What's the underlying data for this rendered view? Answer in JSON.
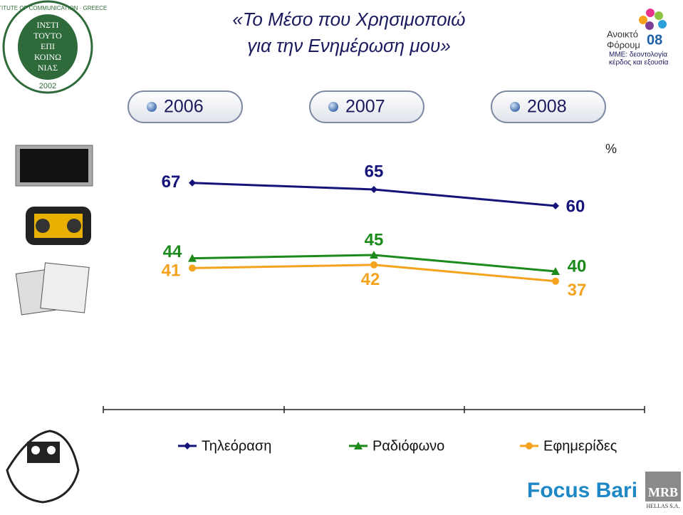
{
  "chart_data": {
    "type": "line",
    "title": [
      "«Το Μέσο που Χρησιμοποιώ",
      "για την Ενημέρωση μου»"
    ],
    "unit": "%",
    "categories": [
      "2006",
      "2007",
      "2008"
    ],
    "series": [
      {
        "name": "Τηλεόραση",
        "color": "#14147a",
        "marker": "diamond",
        "values": [
          67,
          65,
          60
        ]
      },
      {
        "name": "Ραδιόφωνο",
        "color": "#1b8a1b",
        "marker": "triangle",
        "values": [
          44,
          45,
          40
        ]
      },
      {
        "name": "Εφημερίδες",
        "color": "#f5a31e",
        "marker": "circle",
        "values": [
          41,
          42,
          37
        ]
      }
    ]
  },
  "logos": {
    "institute": {
      "ring": "INSTITUTE OF COMMUNICATION · GREECE",
      "lines": [
        "ΙΝΣΤΙ",
        "ΤΟΥΤΟ",
        "ΕΠΙ",
        "ΚΟΙΝΩ",
        "ΝΙΑΣ"
      ],
      "year": "2002"
    },
    "forum": {
      "name": [
        "Ανοικτό",
        "Φόρουμ"
      ],
      "number": "08",
      "subtitle": [
        "ΜΜΕ: δεοντολογία",
        "κέρδος και εξουσία"
      ]
    },
    "focus": "Focus Bari",
    "mrb": {
      "name": "MRB",
      "sub": "HELLAS S.A."
    }
  }
}
